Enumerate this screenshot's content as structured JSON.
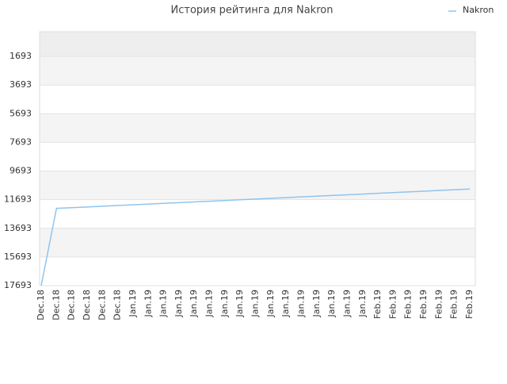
{
  "chart_data": {
    "type": "line",
    "title": "История рейтинга для Nakron",
    "categories": [
      "Dec.18",
      "Dec.18",
      "Dec.18",
      "Dec.18",
      "Dec.18",
      "Dec.18",
      "Jan.19",
      "Jan.19",
      "Jan.19",
      "Jan.19",
      "Jan.19",
      "Jan.19",
      "Jan.19",
      "Jan.19",
      "Jan.19",
      "Jan.19",
      "Jan.19",
      "Jan.19",
      "Jan.19",
      "Jan.19",
      "Jan.19",
      "Jan.19",
      "Feb.19",
      "Feb.19",
      "Feb.19",
      "Feb.19",
      "Feb.19",
      "Feb.19",
      "Feb.19"
    ],
    "series": [
      {
        "name": "Nakron",
        "color": "#90c4ee",
        "values": [
          17693,
          12300,
          12250,
          12200,
          12150,
          12100,
          12050,
          12000,
          11950,
          11900,
          11850,
          11800,
          11750,
          11700,
          11650,
          11600,
          11550,
          11500,
          11450,
          11400,
          11350,
          11300,
          11250,
          11200,
          11150,
          11100,
          11050,
          11000,
          10950
        ]
      }
    ],
    "ylim": [
      17693,
      -29
    ],
    "yticks": [
      1693,
      3693,
      5693,
      7693,
      9693,
      11693,
      13693,
      15693,
      17693
    ],
    "grid": true,
    "legend": "top-right"
  }
}
